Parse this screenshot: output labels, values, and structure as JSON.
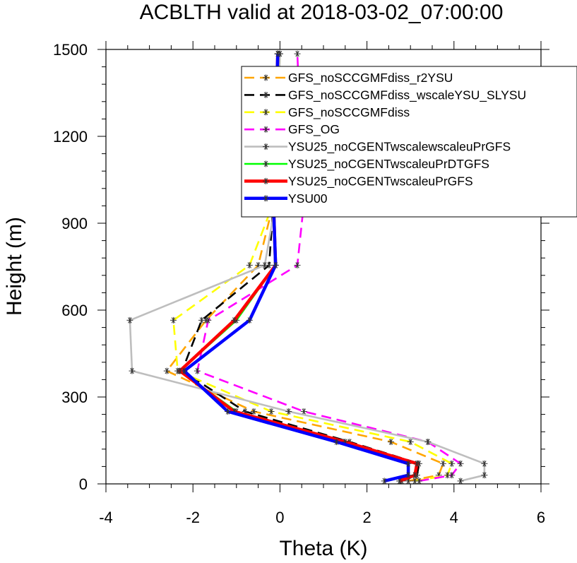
{
  "chart_data": {
    "type": "line",
    "title": "ACBLTH valid at 2018-03-02_07:00:00",
    "xlabel": "Theta (K)",
    "ylabel": "Height (m)",
    "xlim": [
      -4,
      6
    ],
    "ylim": [
      0,
      1500
    ],
    "xticks": [
      "-4",
      "-2",
      "0",
      "2",
      "4",
      "6"
    ],
    "yticks": [
      "0",
      "300",
      "600",
      "900",
      "1200",
      "1500"
    ],
    "xtick_values": [
      -4,
      -2,
      0,
      2,
      4,
      6
    ],
    "ytick_values": [
      0,
      300,
      600,
      900,
      1200,
      1500
    ],
    "grid": false,
    "legend_position": "top-right",
    "heights": [
      10,
      30,
      70,
      145,
      250,
      390,
      565,
      755,
      970,
      1485
    ],
    "series": [
      {
        "name": "GFS_noSCCGMFdiss_r2YSU",
        "color": "#ffa500",
        "dash": "dashed",
        "width": 2.6,
        "x": [
          2.95,
          3.65,
          3.75,
          2.55,
          -0.6,
          -2.6,
          -1.7,
          -0.5,
          -0.15,
          -0.05
        ]
      },
      {
        "name": "GFS_noSCCGMFdiss_wscaleYSU_SLYSU",
        "color": "#000000",
        "dash": "dashed",
        "width": 2.6,
        "x": [
          2.8,
          3.15,
          3.2,
          1.6,
          -0.8,
          -2.25,
          -1.8,
          -0.25,
          -0.15,
          -0.05
        ]
      },
      {
        "name": "GFS_noSCCGMFdiss",
        "color": "#ffff00",
        "dash": "dashed",
        "width": 2.6,
        "x": [
          3.1,
          3.85,
          3.95,
          3.0,
          -0.2,
          -2.35,
          -2.45,
          -0.7,
          -0.15,
          0.0
        ]
      },
      {
        "name": "GFS_OG",
        "color": "#ff00ff",
        "dash": "dashed",
        "width": 2.6,
        "x": [
          3.2,
          3.95,
          4.15,
          3.4,
          0.55,
          -1.9,
          -1.65,
          0.4,
          0.55,
          0.4
        ]
      },
      {
        "name": "YSU25_noCGENTwscalewscaleuPrGFS",
        "color": "#bebebe",
        "dash": "solid",
        "width": 2.6,
        "x": [
          4.15,
          4.7,
          4.7,
          3.4,
          0.2,
          -3.4,
          -3.45,
          -0.35,
          -0.1,
          0.0
        ]
      },
      {
        "name": "YSU25_noCGENTwscaleuPrDTGFS",
        "color": "#00ff00",
        "dash": "solid",
        "width": 2.6,
        "x": [
          2.75,
          3.1,
          3.15,
          1.45,
          -1.0,
          -2.3,
          -1.0,
          -0.1,
          -0.15,
          -0.05
        ]
      },
      {
        "name": "YSU25_noCGENTwscaleuPrGFS",
        "color": "#ff0000",
        "dash": "solid",
        "width": 4.5,
        "x": [
          2.75,
          3.1,
          3.15,
          1.5,
          -1.05,
          -2.3,
          -1.05,
          -0.1,
          -0.15,
          -0.05
        ]
      },
      {
        "name": "YSU00",
        "color": "#0000ff",
        "dash": "solid",
        "width": 4.5,
        "x": [
          2.4,
          2.95,
          2.95,
          1.3,
          -1.2,
          -2.2,
          -0.7,
          -0.1,
          -0.15,
          -0.05
        ]
      }
    ]
  }
}
